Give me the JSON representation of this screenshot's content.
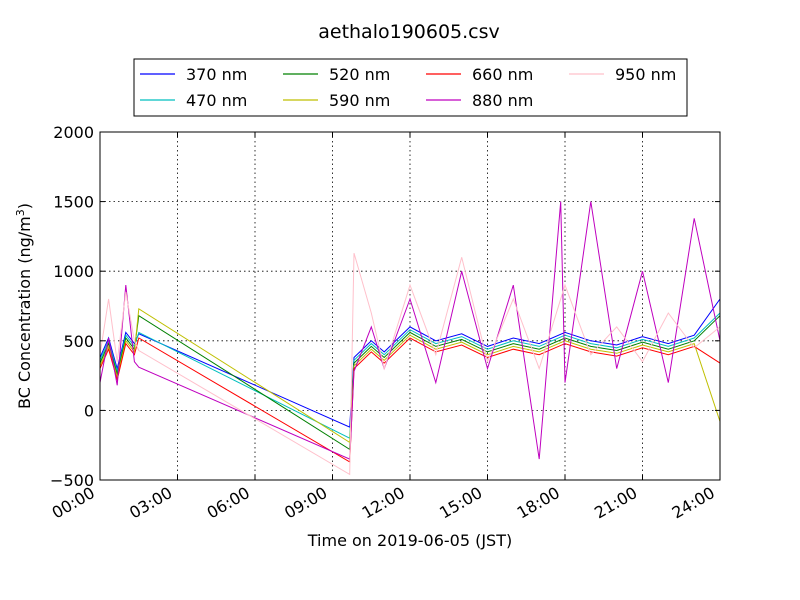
{
  "chart_data": {
    "type": "line",
    "title": "aethalo190605.csv",
    "xlabel": "Time on 2019-06-05 (JST)",
    "ylabel": "BC Concentration (ng/m³)",
    "ylabel_main": "BC Concentration (ng/m",
    "ylabel_sup": "3",
    "ylabel_end": ")",
    "xlim": [
      "00:00",
      "24:00"
    ],
    "ylim": [
      -500,
      2000
    ],
    "xticks": [
      "00:00",
      "03:00",
      "06:00",
      "09:00",
      "12:00",
      "15:00",
      "18:00",
      "21:00",
      "24:00"
    ],
    "yticks": [
      "−500",
      "0",
      "500",
      "1000",
      "1500",
      "2000"
    ],
    "grid": true,
    "legend_position": "top",
    "series": [
      {
        "name": "370 nm",
        "color": "#0000ff",
        "points": [
          [
            "00:00",
            380
          ],
          [
            "00:20",
            520
          ],
          [
            "00:40",
            300
          ],
          [
            "01:00",
            560
          ],
          [
            "01:20",
            480
          ],
          [
            "01:30",
            550
          ],
          [
            "09:40",
            -120
          ],
          [
            "09:50",
            380
          ],
          [
            "10:30",
            500
          ],
          [
            "11:00",
            420
          ],
          [
            "12:00",
            600
          ],
          [
            "13:00",
            500
          ],
          [
            "14:00",
            550
          ],
          [
            "15:00",
            460
          ],
          [
            "16:00",
            520
          ],
          [
            "17:00",
            480
          ],
          [
            "18:00",
            560
          ],
          [
            "19:00",
            500
          ],
          [
            "20:00",
            470
          ],
          [
            "21:00",
            530
          ],
          [
            "22:00",
            480
          ],
          [
            "23:00",
            540
          ],
          [
            "24:00",
            800
          ]
        ]
      },
      {
        "name": "470 nm",
        "color": "#00bfbf",
        "points": [
          [
            "00:00",
            360
          ],
          [
            "00:20",
            500
          ],
          [
            "00:40",
            280
          ],
          [
            "01:00",
            540
          ],
          [
            "01:20",
            460
          ],
          [
            "01:30",
            560
          ],
          [
            "09:40",
            -200
          ],
          [
            "09:50",
            360
          ],
          [
            "10:30",
            480
          ],
          [
            "11:00",
            400
          ],
          [
            "12:00",
            580
          ],
          [
            "13:00",
            480
          ],
          [
            "14:00",
            530
          ],
          [
            "15:00",
            440
          ],
          [
            "16:00",
            500
          ],
          [
            "17:00",
            460
          ],
          [
            "18:00",
            540
          ],
          [
            "19:00",
            480
          ],
          [
            "20:00",
            450
          ],
          [
            "21:00",
            510
          ],
          [
            "22:00",
            460
          ],
          [
            "23:00",
            520
          ],
          [
            "24:00",
            700
          ]
        ]
      },
      {
        "name": "520 nm",
        "color": "#008000",
        "points": [
          [
            "00:00",
            340
          ],
          [
            "00:20",
            480
          ],
          [
            "00:40",
            260
          ],
          [
            "01:00",
            520
          ],
          [
            "01:20",
            440
          ],
          [
            "01:30",
            680
          ],
          [
            "09:40",
            -280
          ],
          [
            "09:50",
            340
          ],
          [
            "10:30",
            460
          ],
          [
            "11:00",
            380
          ],
          [
            "12:00",
            560
          ],
          [
            "13:00",
            460
          ],
          [
            "14:00",
            510
          ],
          [
            "15:00",
            420
          ],
          [
            "16:00",
            480
          ],
          [
            "17:00",
            440
          ],
          [
            "18:00",
            520
          ],
          [
            "19:00",
            460
          ],
          [
            "20:00",
            430
          ],
          [
            "21:00",
            490
          ],
          [
            "22:00",
            440
          ],
          [
            "23:00",
            500
          ],
          [
            "24:00",
            680
          ]
        ]
      },
      {
        "name": "590 nm",
        "color": "#bfbf00",
        "points": [
          [
            "00:00",
            320
          ],
          [
            "00:20",
            460
          ],
          [
            "00:40",
            240
          ],
          [
            "01:00",
            500
          ],
          [
            "01:20",
            420
          ],
          [
            "01:30",
            730
          ],
          [
            "09:40",
            -230
          ],
          [
            "09:50",
            320
          ],
          [
            "10:30",
            440
          ],
          [
            "11:00",
            360
          ],
          [
            "12:00",
            540
          ],
          [
            "13:00",
            440
          ],
          [
            "14:00",
            490
          ],
          [
            "15:00",
            400
          ],
          [
            "16:00",
            460
          ],
          [
            "17:00",
            420
          ],
          [
            "18:00",
            500
          ],
          [
            "19:00",
            440
          ],
          [
            "20:00",
            410
          ],
          [
            "21:00",
            470
          ],
          [
            "22:00",
            420
          ],
          [
            "23:00",
            480
          ],
          [
            "24:00",
            -80
          ]
        ]
      },
      {
        "name": "660 nm",
        "color": "#ff0000",
        "points": [
          [
            "00:00",
            300
          ],
          [
            "00:20",
            440
          ],
          [
            "00:40",
            220
          ],
          [
            "01:00",
            480
          ],
          [
            "01:20",
            400
          ],
          [
            "01:30",
            520
          ],
          [
            "09:40",
            -370
          ],
          [
            "09:50",
            300
          ],
          [
            "10:30",
            420
          ],
          [
            "11:00",
            340
          ],
          [
            "12:00",
            520
          ],
          [
            "13:00",
            420
          ],
          [
            "14:00",
            470
          ],
          [
            "15:00",
            380
          ],
          [
            "16:00",
            440
          ],
          [
            "17:00",
            400
          ],
          [
            "18:00",
            480
          ],
          [
            "19:00",
            420
          ],
          [
            "20:00",
            390
          ],
          [
            "21:00",
            450
          ],
          [
            "22:00",
            400
          ],
          [
            "23:00",
            460
          ],
          [
            "24:00",
            340
          ]
        ]
      },
      {
        "name": "880 nm",
        "color": "#bf00bf",
        "points": [
          [
            "00:00",
            200
          ],
          [
            "00:20",
            520
          ],
          [
            "00:40",
            180
          ],
          [
            "01:00",
            900
          ],
          [
            "01:20",
            350
          ],
          [
            "01:30",
            310
          ],
          [
            "09:40",
            -350
          ],
          [
            "09:50",
            280
          ],
          [
            "10:30",
            600
          ],
          [
            "11:00",
            300
          ],
          [
            "12:00",
            800
          ],
          [
            "13:00",
            200
          ],
          [
            "14:00",
            1000
          ],
          [
            "15:00",
            300
          ],
          [
            "16:00",
            900
          ],
          [
            "17:00",
            -350
          ],
          [
            "17:50",
            1500
          ],
          [
            "18:00",
            200
          ],
          [
            "19:00",
            1500
          ],
          [
            "20:00",
            300
          ],
          [
            "21:00",
            1000
          ],
          [
            "22:00",
            200
          ],
          [
            "23:00",
            1380
          ],
          [
            "24:00",
            500
          ]
        ]
      },
      {
        "name": "950 nm",
        "color": "#ffc0cb",
        "points": [
          [
            "00:00",
            400
          ],
          [
            "00:20",
            800
          ],
          [
            "00:40",
            350
          ],
          [
            "01:00",
            850
          ],
          [
            "01:20",
            500
          ],
          [
            "01:30",
            430
          ],
          [
            "09:40",
            -460
          ],
          [
            "09:50",
            1130
          ],
          [
            "10:30",
            700
          ],
          [
            "11:00",
            300
          ],
          [
            "12:00",
            900
          ],
          [
            "13:00",
            400
          ],
          [
            "14:00",
            1100
          ],
          [
            "15:00",
            350
          ],
          [
            "16:00",
            800
          ],
          [
            "17:00",
            300
          ],
          [
            "18:00",
            900
          ],
          [
            "19:00",
            400
          ],
          [
            "20:00",
            600
          ],
          [
            "21:00",
            350
          ],
          [
            "22:00",
            700
          ],
          [
            "23:00",
            450
          ],
          [
            "24:00",
            600
          ]
        ]
      }
    ]
  }
}
